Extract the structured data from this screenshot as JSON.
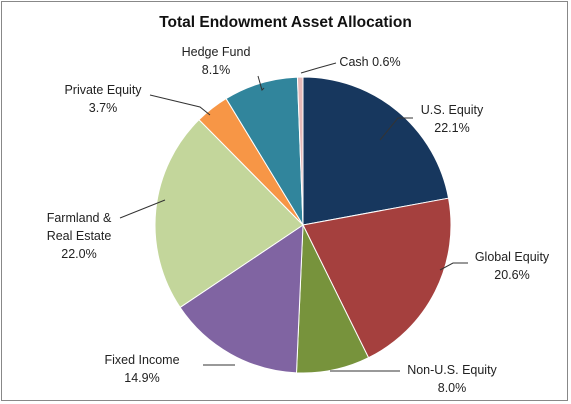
{
  "chart_data": {
    "type": "pie",
    "title": "Total Endowment Asset Allocation",
    "categories": [
      "U.S. Equity",
      "Global Equity",
      "Non-U.S. Equity",
      "Fixed Income",
      "Farmland & Real Estate",
      "Private Equity",
      "Hedge Fund",
      "Cash"
    ],
    "values": [
      22.1,
      20.6,
      8.0,
      14.9,
      22.0,
      3.7,
      8.1,
      0.6
    ],
    "value_labels": [
      "22.1%",
      "20.6%",
      "8.0%",
      "14.9%",
      "22.0%",
      "3.7%",
      "8.1%",
      "0.6%"
    ],
    "colors": [
      "#17375e",
      "#a5403e",
      "#77933c",
      "#8064a2",
      "#c3d69b",
      "#f79646",
      "#31859c",
      "#e6b9b8"
    ]
  }
}
